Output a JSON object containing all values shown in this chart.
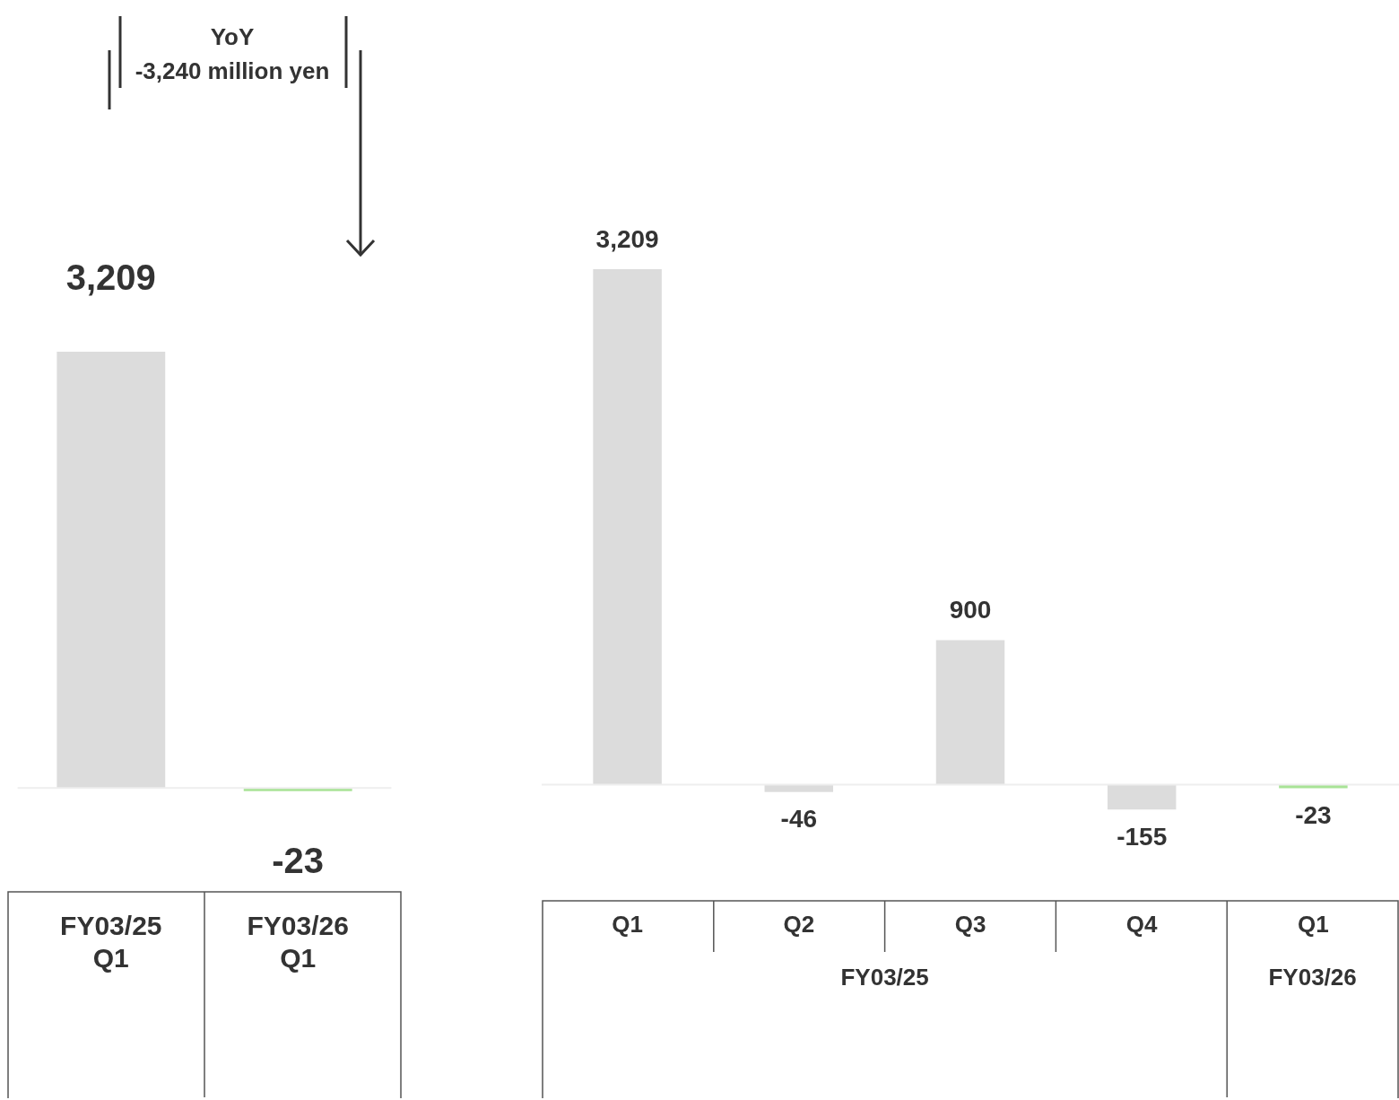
{
  "chart_data": [
    {
      "type": "bar",
      "categories": [
        "FY03/25 Q1",
        "FY03/26 Q1"
      ],
      "values": [
        3209,
        -23
      ],
      "colors": [
        "#dcdcdc",
        "#a8e396"
      ],
      "value_labels": [
        "3,209",
        "-23"
      ],
      "grid": false,
      "legend": false,
      "annotations": [
        "YoY\n-3,240 million yen"
      ]
    },
    {
      "type": "bar",
      "categories": [
        "Q1",
        "Q2",
        "Q3",
        "Q4",
        "Q1"
      ],
      "values": [
        3209,
        -46,
        900,
        -155,
        -23
      ],
      "colors": [
        "#dcdcdc",
        "#dcdcdc",
        "#dcdcdc",
        "#dcdcdc",
        "#a8e396"
      ],
      "value_labels": [
        "3,209",
        "-46",
        "900",
        "-155",
        "-23"
      ],
      "grid": false,
      "legend": false,
      "annotations": [
        "FY03/25",
        "FY03/26"
      ]
    }
  ]
}
